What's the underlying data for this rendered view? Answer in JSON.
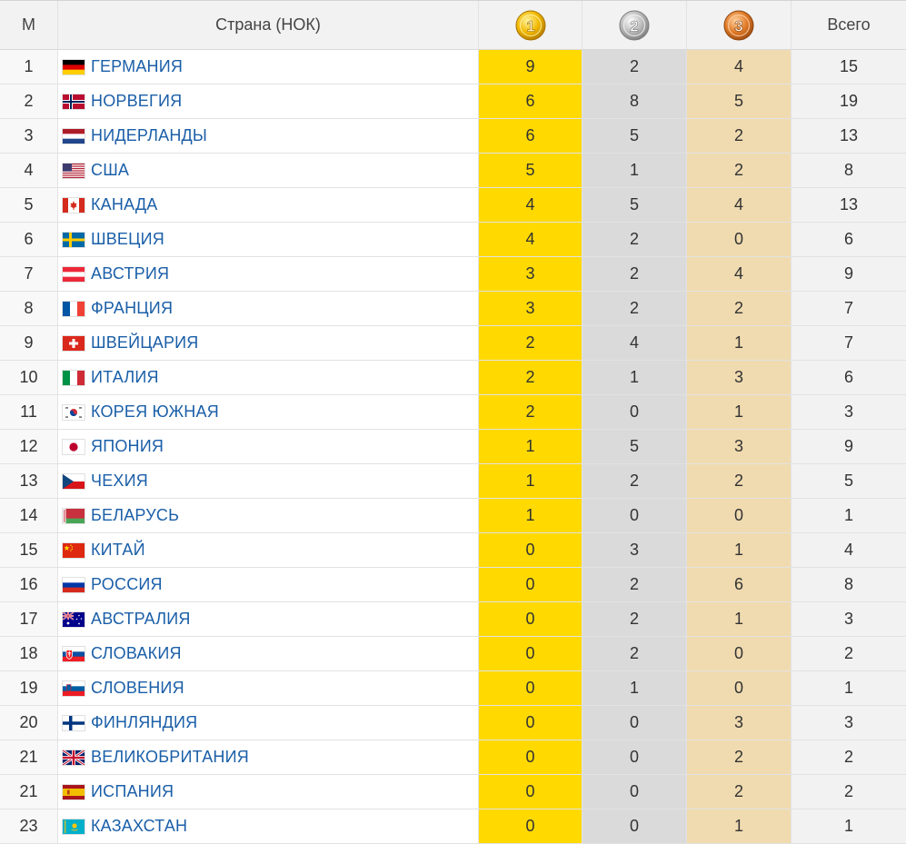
{
  "table": {
    "headers": {
      "rank": "М",
      "country": "Страна (НОК)",
      "gold": "gold-medal-1-icon",
      "silver": "silver-medal-2-icon",
      "bronze": "bronze-medal-3-icon",
      "total": "Всего"
    },
    "medal_colors": {
      "gold": "#ffd900",
      "silver": "#dadada",
      "bronze": "#f0dbb0"
    },
    "rows": [
      {
        "rank": "1",
        "country": "ГЕРМАНИЯ",
        "flag": "de",
        "gold": "9",
        "silver": "2",
        "bronze": "4",
        "total": "15"
      },
      {
        "rank": "2",
        "country": "НОРВЕГИЯ",
        "flag": "no",
        "gold": "6",
        "silver": "8",
        "bronze": "5",
        "total": "19"
      },
      {
        "rank": "3",
        "country": "НИДЕРЛАНДЫ",
        "flag": "nl",
        "gold": "6",
        "silver": "5",
        "bronze": "2",
        "total": "13"
      },
      {
        "rank": "4",
        "country": "США",
        "flag": "us",
        "gold": "5",
        "silver": "1",
        "bronze": "2",
        "total": "8"
      },
      {
        "rank": "5",
        "country": "КАНАДА",
        "flag": "ca",
        "gold": "4",
        "silver": "5",
        "bronze": "4",
        "total": "13"
      },
      {
        "rank": "6",
        "country": "ШВЕЦИЯ",
        "flag": "se",
        "gold": "4",
        "silver": "2",
        "bronze": "0",
        "total": "6"
      },
      {
        "rank": "7",
        "country": "АВСТРИЯ",
        "flag": "at",
        "gold": "3",
        "silver": "2",
        "bronze": "4",
        "total": "9"
      },
      {
        "rank": "8",
        "country": "ФРАНЦИЯ",
        "flag": "fr",
        "gold": "3",
        "silver": "2",
        "bronze": "2",
        "total": "7"
      },
      {
        "rank": "9",
        "country": "ШВЕЙЦАРИЯ",
        "flag": "ch",
        "gold": "2",
        "silver": "4",
        "bronze": "1",
        "total": "7"
      },
      {
        "rank": "10",
        "country": "ИТАЛИЯ",
        "flag": "it",
        "gold": "2",
        "silver": "1",
        "bronze": "3",
        "total": "6"
      },
      {
        "rank": "11",
        "country": "КОРЕЯ ЮЖНАЯ",
        "flag": "kr",
        "gold": "2",
        "silver": "0",
        "bronze": "1",
        "total": "3"
      },
      {
        "rank": "12",
        "country": "ЯПОНИЯ",
        "flag": "jp",
        "gold": "1",
        "silver": "5",
        "bronze": "3",
        "total": "9"
      },
      {
        "rank": "13",
        "country": "ЧЕХИЯ",
        "flag": "cz",
        "gold": "1",
        "silver": "2",
        "bronze": "2",
        "total": "5"
      },
      {
        "rank": "14",
        "country": "БЕЛАРУСЬ",
        "flag": "by",
        "gold": "1",
        "silver": "0",
        "bronze": "0",
        "total": "1"
      },
      {
        "rank": "15",
        "country": "КИТАЙ",
        "flag": "cn",
        "gold": "0",
        "silver": "3",
        "bronze": "1",
        "total": "4"
      },
      {
        "rank": "16",
        "country": "РОССИЯ",
        "flag": "ru",
        "gold": "0",
        "silver": "2",
        "bronze": "6",
        "total": "8"
      },
      {
        "rank": "17",
        "country": "АВСТРАЛИЯ",
        "flag": "au",
        "gold": "0",
        "silver": "2",
        "bronze": "1",
        "total": "3"
      },
      {
        "rank": "18",
        "country": "СЛОВАКИЯ",
        "flag": "sk",
        "gold": "0",
        "silver": "2",
        "bronze": "0",
        "total": "2"
      },
      {
        "rank": "19",
        "country": "СЛОВЕНИЯ",
        "flag": "si",
        "gold": "0",
        "silver": "1",
        "bronze": "0",
        "total": "1"
      },
      {
        "rank": "20",
        "country": "ФИНЛЯНДИЯ",
        "flag": "fi",
        "gold": "0",
        "silver": "0",
        "bronze": "3",
        "total": "3"
      },
      {
        "rank": "21",
        "country": "ВЕЛИКОБРИТАНИЯ",
        "flag": "gb",
        "gold": "0",
        "silver": "0",
        "bronze": "2",
        "total": "2"
      },
      {
        "rank": "21",
        "country": "ИСПАНИЯ",
        "flag": "es",
        "gold": "0",
        "silver": "0",
        "bronze": "2",
        "total": "2"
      },
      {
        "rank": "23",
        "country": "КАЗАХСТАН",
        "flag": "kz",
        "gold": "0",
        "silver": "0",
        "bronze": "1",
        "total": "1"
      }
    ]
  }
}
